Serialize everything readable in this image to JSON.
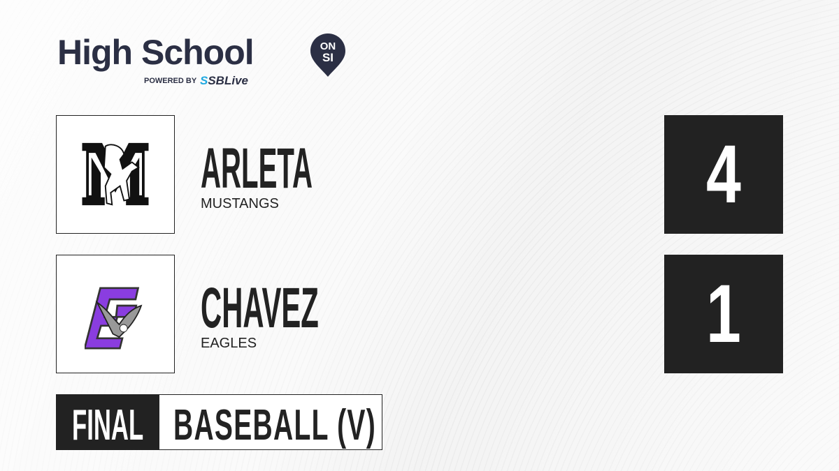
{
  "brand": {
    "title": "High School",
    "badge_top": "ON",
    "badge_bottom": "SI",
    "powered_by": "POWERED BY",
    "partner_prefix": "S",
    "partner": "SBLive"
  },
  "teams": [
    {
      "name": "ARLETA",
      "mascot": "MUSTANGS",
      "score": "4",
      "logo": "mustang-logo"
    },
    {
      "name": "CHAVEZ",
      "mascot": "EAGLES",
      "score": "1",
      "logo": "eagle-logo",
      "logo_color": "#8a3de0"
    }
  ],
  "game": {
    "status": "FINAL",
    "sport": "BASEBALL (V)"
  },
  "colors": {
    "dark": "#222222",
    "brand": "#2b2f44",
    "accent": "#1fa8e0"
  }
}
